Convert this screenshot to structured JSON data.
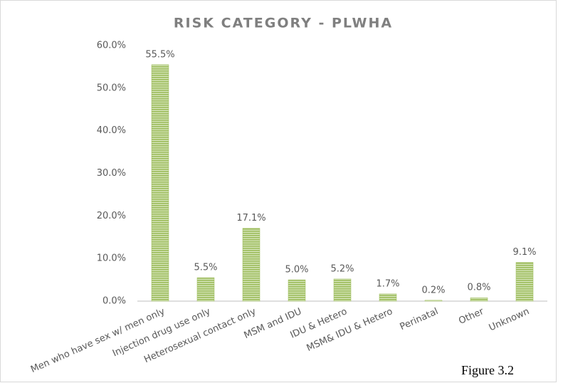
{
  "chart_data": {
    "type": "bar",
    "title": "RISK CATEGORY - PLWHA",
    "categories": [
      "Men who have sex w/ men only",
      "Injection drug use only",
      "Heterosexual contact only",
      "MSM and IDU",
      "IDU & Hetero",
      "MSM& IDU & Hetero",
      "Perinatal",
      "Other",
      "Unknown"
    ],
    "values": [
      55.5,
      5.5,
      17.1,
      5.0,
      5.2,
      1.7,
      0.2,
      0.8,
      9.1
    ],
    "value_labels": [
      "55.5%",
      "5.5%",
      "17.1%",
      "5.0%",
      "5.2%",
      "1.7%",
      "0.2%",
      "0.8%",
      "9.1%"
    ],
    "color": "#9bbb59",
    "ylim": [
      0,
      60
    ],
    "yticks": [
      {
        "value": 0,
        "label": "0.0%"
      },
      {
        "value": 10,
        "label": "10.0%"
      },
      {
        "value": 20,
        "label": "20.0%"
      },
      {
        "value": 30,
        "label": "30.0%"
      },
      {
        "value": 40,
        "label": "40.0%"
      },
      {
        "value": 50,
        "label": "50.0%"
      },
      {
        "value": 60,
        "label": "60.0%"
      }
    ],
    "grid": false
  },
  "caption": "Figure 3.2"
}
